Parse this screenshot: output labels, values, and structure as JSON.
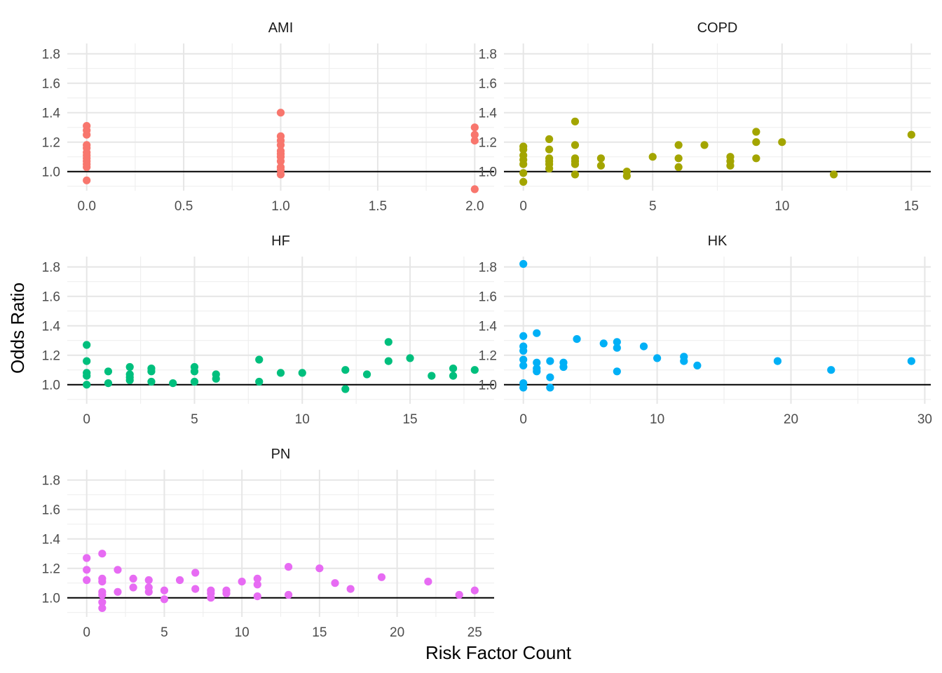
{
  "chart_data": {
    "type": "scatter",
    "xlabel": "Risk Factor Count",
    "ylabel": "Odds Ratio",
    "ylim": [
      0.87,
      1.87
    ],
    "y_ticks": [
      1.0,
      1.2,
      1.4,
      1.6,
      1.8
    ],
    "y_tick_labels": [
      "1.0",
      "1.2",
      "1.4",
      "1.6",
      "1.8"
    ],
    "reference_line": 1.0,
    "panels": [
      {
        "label": "AMI",
        "color": "#F8766D",
        "xlim": [
          -0.1,
          2.1
        ],
        "x_ticks": [
          0,
          0.5,
          1,
          1.5,
          2
        ],
        "x_tick_labels": [
          "0.0",
          "0.5",
          "1.0",
          "1.5",
          "2.0"
        ],
        "x_minor": [
          0.25,
          0.75,
          1.25,
          1.75
        ],
        "points": [
          [
            0,
            0.94
          ],
          [
            0,
            1.03
          ],
          [
            0,
            1.05
          ],
          [
            0,
            1.07
          ],
          [
            0,
            1.09
          ],
          [
            0,
            1.11
          ],
          [
            0,
            1.13
          ],
          [
            0,
            1.16
          ],
          [
            0,
            1.18
          ],
          [
            0,
            1.25
          ],
          [
            0,
            1.28
          ],
          [
            0,
            1.31
          ],
          [
            1,
            0.98
          ],
          [
            1,
            1.01
          ],
          [
            1,
            1.03
          ],
          [
            1,
            1.07
          ],
          [
            1,
            1.1
          ],
          [
            1,
            1.12
          ],
          [
            1,
            1.14
          ],
          [
            1,
            1.18
          ],
          [
            1,
            1.21
          ],
          [
            1,
            1.24
          ],
          [
            1,
            1.4
          ],
          [
            2,
            0.88
          ],
          [
            2,
            1.21
          ],
          [
            2,
            1.25
          ],
          [
            2,
            1.3
          ]
        ]
      },
      {
        "label": "COPD",
        "color": "#A3A500",
        "xlim": [
          -0.75,
          15.75
        ],
        "x_ticks": [
          0,
          5,
          10,
          15
        ],
        "x_tick_labels": [
          "0",
          "5",
          "10",
          "15"
        ],
        "x_minor": [
          2.5,
          7.5,
          12.5
        ],
        "points": [
          [
            0,
            0.93
          ],
          [
            0,
            0.99
          ],
          [
            0,
            1.05
          ],
          [
            0,
            1.08
          ],
          [
            0,
            1.11
          ],
          [
            0,
            1.15
          ],
          [
            0,
            1.17
          ],
          [
            1,
            1.02
          ],
          [
            1,
            1.05
          ],
          [
            1,
            1.07
          ],
          [
            1,
            1.09
          ],
          [
            1,
            1.15
          ],
          [
            1,
            1.22
          ],
          [
            2,
            0.98
          ],
          [
            2,
            1.05
          ],
          [
            2,
            1.07
          ],
          [
            2,
            1.09
          ],
          [
            2,
            1.18
          ],
          [
            2,
            1.34
          ],
          [
            3,
            1.04
          ],
          [
            3,
            1.09
          ],
          [
            4,
            0.97
          ],
          [
            4,
            1.0
          ],
          [
            5,
            1.1
          ],
          [
            6,
            1.03
          ],
          [
            6,
            1.09
          ],
          [
            6,
            1.18
          ],
          [
            7,
            1.18
          ],
          [
            8,
            1.04
          ],
          [
            8,
            1.07
          ],
          [
            8,
            1.1
          ],
          [
            9,
            1.09
          ],
          [
            9,
            1.2
          ],
          [
            9,
            1.27
          ],
          [
            10,
            1.2
          ],
          [
            12,
            0.98
          ],
          [
            15,
            1.25
          ]
        ]
      },
      {
        "label": "HF",
        "color": "#00BF7D",
        "xlim": [
          -0.9,
          18.9
        ],
        "x_ticks": [
          0,
          5,
          10,
          15
        ],
        "x_tick_labels": [
          "0",
          "5",
          "10",
          "15"
        ],
        "x_minor": [
          2.5,
          7.5,
          12.5,
          17.5
        ],
        "points": [
          [
            0,
            1.0
          ],
          [
            0,
            1.06
          ],
          [
            0,
            1.08
          ],
          [
            0,
            1.16
          ],
          [
            0,
            1.27
          ],
          [
            1,
            1.01
          ],
          [
            1,
            1.09
          ],
          [
            2,
            1.03
          ],
          [
            2,
            1.05
          ],
          [
            2,
            1.07
          ],
          [
            2,
            1.12
          ],
          [
            3,
            1.02
          ],
          [
            3,
            1.09
          ],
          [
            3,
            1.11
          ],
          [
            4,
            1.01
          ],
          [
            5,
            1.02
          ],
          [
            5,
            1.09
          ],
          [
            5,
            1.12
          ],
          [
            6,
            1.04
          ],
          [
            6,
            1.07
          ],
          [
            8,
            1.02
          ],
          [
            8,
            1.17
          ],
          [
            9,
            1.08
          ],
          [
            10,
            1.08
          ],
          [
            12,
            0.97
          ],
          [
            12,
            1.1
          ],
          [
            13,
            1.07
          ],
          [
            14,
            1.16
          ],
          [
            14,
            1.29
          ],
          [
            15,
            1.18
          ],
          [
            16,
            1.06
          ],
          [
            17,
            1.06
          ],
          [
            17,
            1.11
          ],
          [
            18,
            1.1
          ]
        ]
      },
      {
        "label": "HK",
        "color": "#00B0F6",
        "xlim": [
          -1.45,
          30.45
        ],
        "x_ticks": [
          0,
          10,
          20,
          30
        ],
        "x_tick_labels": [
          "0",
          "10",
          "20",
          "30"
        ],
        "x_minor": [
          5,
          15,
          25
        ],
        "points": [
          [
            0,
            0.98
          ],
          [
            0,
            1.01
          ],
          [
            0,
            1.13
          ],
          [
            0,
            1.17
          ],
          [
            0,
            1.23
          ],
          [
            0,
            1.26
          ],
          [
            0,
            1.33
          ],
          [
            0,
            1.82
          ],
          [
            1,
            1.09
          ],
          [
            1,
            1.11
          ],
          [
            1,
            1.15
          ],
          [
            1,
            1.35
          ],
          [
            2,
            0.98
          ],
          [
            2,
            1.05
          ],
          [
            2,
            1.16
          ],
          [
            3,
            1.12
          ],
          [
            3,
            1.15
          ],
          [
            4,
            1.31
          ],
          [
            6,
            1.28
          ],
          [
            7,
            1.09
          ],
          [
            7,
            1.25
          ],
          [
            7,
            1.29
          ],
          [
            9,
            1.26
          ],
          [
            10,
            1.18
          ],
          [
            12,
            1.16
          ],
          [
            12,
            1.19
          ],
          [
            13,
            1.13
          ],
          [
            19,
            1.16
          ],
          [
            23,
            1.1
          ],
          [
            29,
            1.16
          ]
        ]
      },
      {
        "label": "PN",
        "color": "#E76BF3",
        "xlim": [
          -1.25,
          26.25
        ],
        "x_ticks": [
          0,
          5,
          10,
          15,
          20,
          25
        ],
        "x_tick_labels": [
          "0",
          "5",
          "10",
          "15",
          "20",
          "25"
        ],
        "x_minor": [
          2.5,
          7.5,
          12.5,
          17.5,
          22.5
        ],
        "points": [
          [
            0,
            1.12
          ],
          [
            0,
            1.19
          ],
          [
            0,
            1.27
          ],
          [
            1,
            0.93
          ],
          [
            1,
            0.97
          ],
          [
            1,
            1.02
          ],
          [
            1,
            1.04
          ],
          [
            1,
            1.11
          ],
          [
            1,
            1.13
          ],
          [
            1,
            1.3
          ],
          [
            2,
            1.04
          ],
          [
            2,
            1.19
          ],
          [
            3,
            1.07
          ],
          [
            3,
            1.13
          ],
          [
            4,
            1.04
          ],
          [
            4,
            1.07
          ],
          [
            4,
            1.12
          ],
          [
            5,
            0.99
          ],
          [
            5,
            1.05
          ],
          [
            6,
            1.12
          ],
          [
            7,
            1.06
          ],
          [
            7,
            1.17
          ],
          [
            8,
            1.0
          ],
          [
            8,
            1.03
          ],
          [
            8,
            1.05
          ],
          [
            9,
            1.03
          ],
          [
            9,
            1.05
          ],
          [
            10,
            1.11
          ],
          [
            11,
            1.01
          ],
          [
            11,
            1.09
          ],
          [
            11,
            1.13
          ],
          [
            13,
            1.02
          ],
          [
            13,
            1.21
          ],
          [
            15,
            1.2
          ],
          [
            16,
            1.1
          ],
          [
            17,
            1.06
          ],
          [
            19,
            1.14
          ],
          [
            22,
            1.11
          ],
          [
            24,
            1.02
          ],
          [
            25,
            1.05
          ]
        ]
      }
    ]
  }
}
